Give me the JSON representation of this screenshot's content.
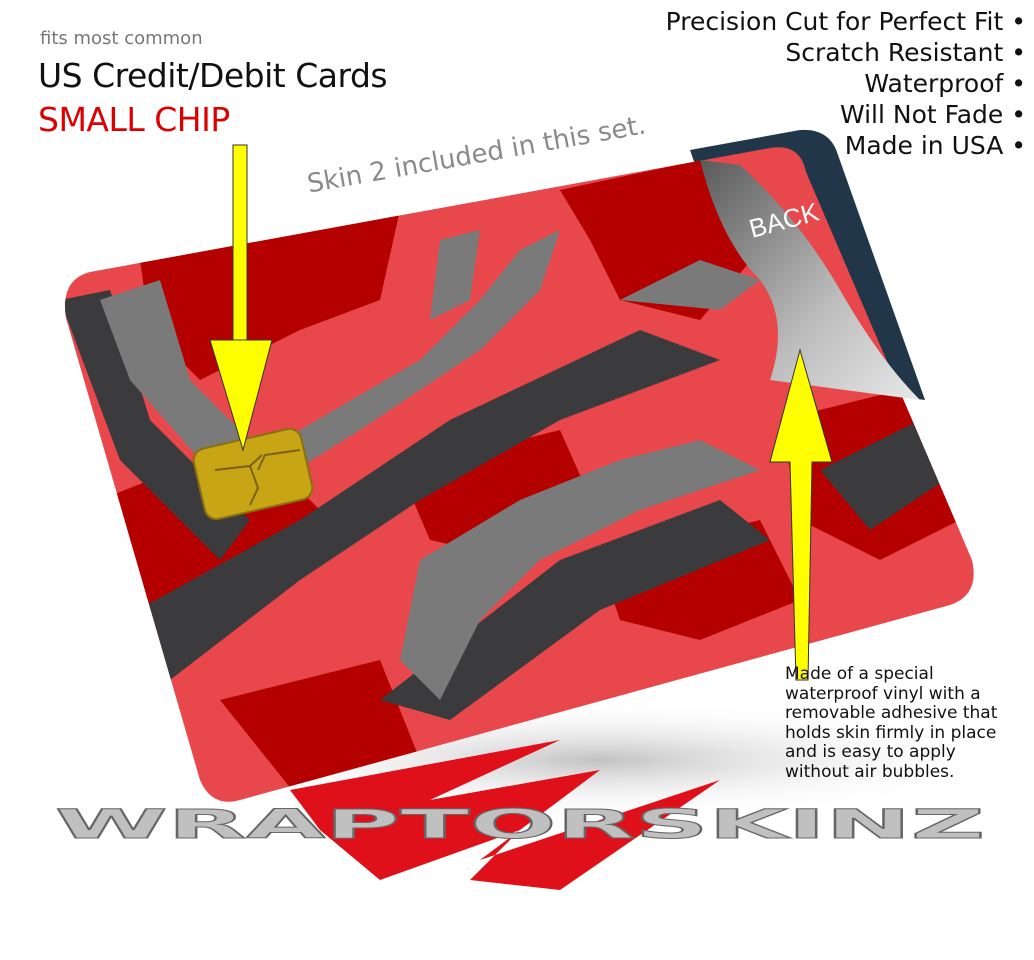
{
  "header": {
    "fits_label": "fits most common",
    "cards_label": "US Credit/Debit Cards",
    "chip_label": "SMALL CHIP"
  },
  "features": [
    "Precision Cut for Perfect Fit •",
    "Scratch Resistant •",
    "Waterproof •",
    "Will Not Fade •",
    "Made in USA •"
  ],
  "skin_note": "Skin 2 included in this set.",
  "card": {
    "back_label": "BACK",
    "colors": {
      "light_red": "#e8474b",
      "dark_red": "#b50000",
      "gray": "#7a7a7a",
      "charcoal": "#3b3a3c",
      "back": "#22364a",
      "chip": "#c8a514"
    }
  },
  "note": [
    "Made of a special",
    "waterproof vinyl with a",
    "removable adhesive that",
    "holds skin firmly in place",
    "and is easy to apply",
    "without air bubbles."
  ],
  "logo": {
    "text": "WRAPTORSKINZ",
    "colors": {
      "red": "#e0101a",
      "silver": "#c0c0c0"
    }
  },
  "arrow_color": "#ffff00"
}
